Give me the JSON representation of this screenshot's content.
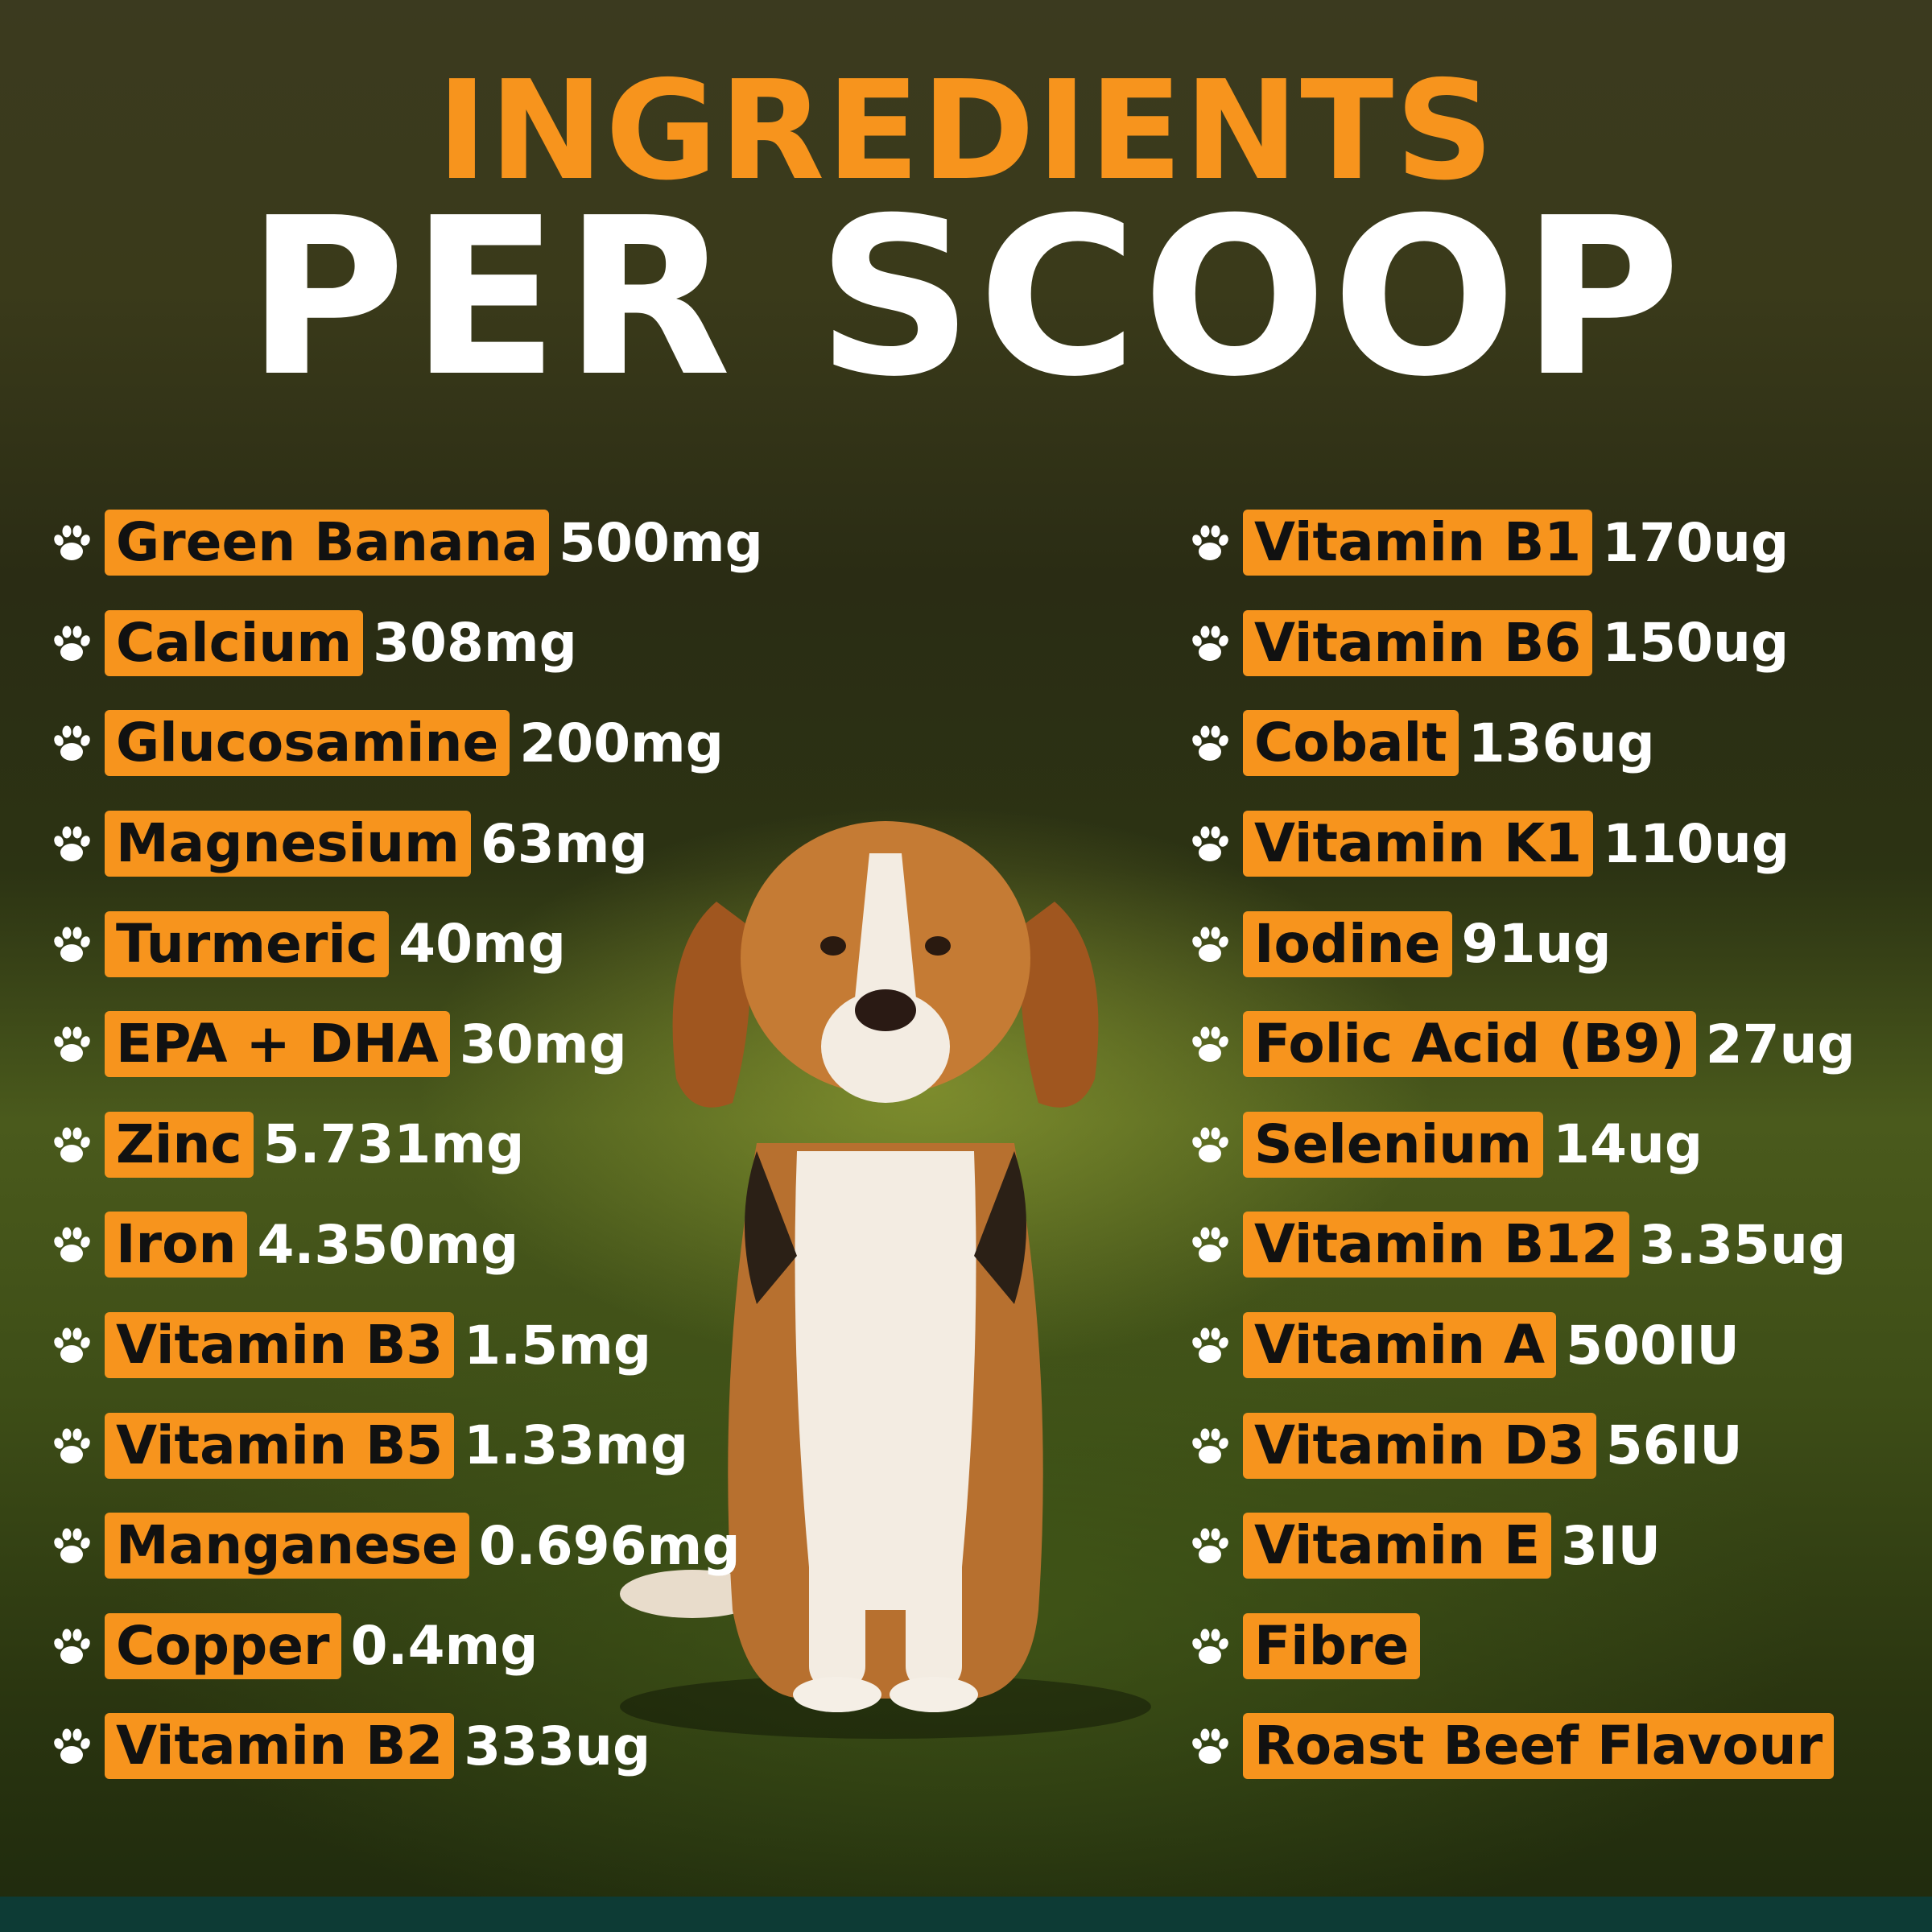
{
  "header": {
    "line1": "INGREDIENTS",
    "line2": "PER SCOOP"
  },
  "colors": {
    "accent": "#f7941d",
    "label_text": "#111111",
    "value_text": "#ffffff",
    "footer_strip": "#0d3b35"
  },
  "icons": {
    "bullet": "paw-print-icon"
  },
  "left_column": [
    {
      "name": "Green Banana",
      "amount": "500mg"
    },
    {
      "name": "Calcium",
      "amount": "308mg"
    },
    {
      "name": "Glucosamine",
      "amount": "200mg"
    },
    {
      "name": "Magnesium",
      "amount": "63mg"
    },
    {
      "name": "Turmeric",
      "amount": "40mg"
    },
    {
      "name": "EPA + DHA",
      "amount": "30mg"
    },
    {
      "name": "Zinc",
      "amount": "5.731mg"
    },
    {
      "name": "Iron",
      "amount": "4.350mg"
    },
    {
      "name": "Vitamin B3",
      "amount": "1.5mg"
    },
    {
      "name": "Vitamin B5",
      "amount": "1.33mg"
    },
    {
      "name": "Manganese",
      "amount": "0.696mg"
    },
    {
      "name": "Copper",
      "amount": "0.4mg"
    },
    {
      "name": "Vitamin B2",
      "amount": "333ug"
    }
  ],
  "right_column": [
    {
      "name": "Vitamin B1",
      "amount": "170ug"
    },
    {
      "name": "Vitamin B6",
      "amount": "150ug"
    },
    {
      "name": "Cobalt",
      "amount": "136ug"
    },
    {
      "name": "Vitamin K1",
      "amount": "110ug"
    },
    {
      "name": "Iodine",
      "amount": "91ug"
    },
    {
      "name": "Folic Acid (B9)",
      "amount": "27ug"
    },
    {
      "name": "Selenium",
      "amount": "14ug"
    },
    {
      "name": "Vitamin B12",
      "amount": "3.35ug"
    },
    {
      "name": "Vitamin A",
      "amount": "500IU"
    },
    {
      "name": "Vitamin D3",
      "amount": "56IU"
    },
    {
      "name": "Vitamin E",
      "amount": "3IU"
    },
    {
      "name": "Fibre",
      "amount": ""
    },
    {
      "name": "Roast Beef Flavour",
      "amount": ""
    }
  ]
}
